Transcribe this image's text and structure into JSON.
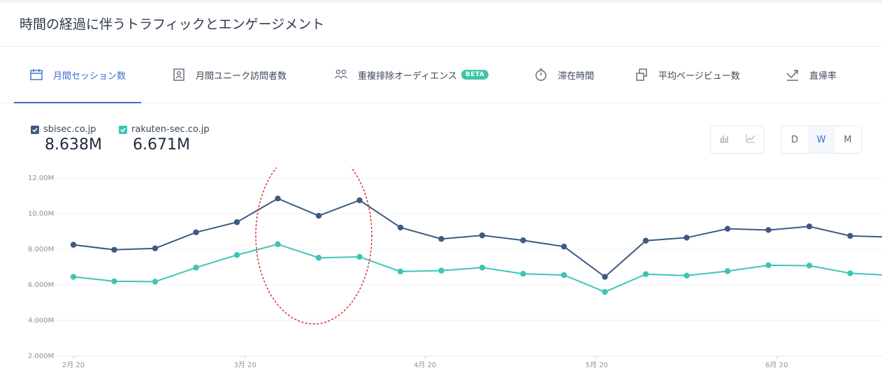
{
  "page_title": "時間の経過に伴うトラフィックとエンゲージメント",
  "tabs": [
    {
      "label": "月間セッション数",
      "icon": "calendar-icon",
      "active": true
    },
    {
      "label": "月間ユニーク訪問者数",
      "icon": "id-card-icon",
      "active": false
    },
    {
      "label": "重複排除オーディエンス",
      "icon": "users-icon",
      "active": false,
      "badge": "BETA"
    },
    {
      "label": "滞在時間",
      "icon": "timer-icon",
      "active": false
    },
    {
      "label": "平均ページビュー数",
      "icon": "pages-icon",
      "active": false
    },
    {
      "label": "直帰率",
      "icon": "bounce-icon",
      "active": false
    }
  ],
  "legend": [
    {
      "label": "sbisec.co.jp",
      "value": "8.638M",
      "color": "#3d5a82"
    },
    {
      "label": "rakuten-sec.co.jp",
      "value": "6.671M",
      "color": "#3ec5b4"
    }
  ],
  "chart_controls": {
    "type_buttons": [
      {
        "icon": "bar-chart-icon",
        "active": false
      },
      {
        "icon": "line-chart-icon",
        "active": false
      }
    ],
    "granularity": [
      {
        "label": "D",
        "active": false
      },
      {
        "label": "W",
        "active": true
      },
      {
        "label": "M",
        "active": false
      }
    ]
  },
  "chart_data": {
    "type": "line",
    "y_ticks": [
      "12.00M",
      "10.00M",
      "8.000M",
      "6.000M",
      "4.000M",
      "2.000M"
    ],
    "y_tick_values": [
      12,
      10,
      8,
      6,
      4,
      2
    ],
    "ylim": [
      2,
      12
    ],
    "x_ticks": [
      "2月 20",
      "3月 20",
      "4月 20",
      "5月 20",
      "6月 20"
    ],
    "x_tick_index": [
      0,
      4.2,
      8.6,
      12.8,
      17.2
    ],
    "grid": true,
    "series": [
      {
        "name": "sbisec.co.jp",
        "color": "#3d5a82",
        "values": [
          8.25,
          7.97,
          8.05,
          8.95,
          9.52,
          10.85,
          9.88,
          10.75,
          9.22,
          8.58,
          8.78,
          8.5,
          8.15,
          6.45,
          8.48,
          8.65,
          9.15,
          9.08,
          9.28,
          8.75,
          8.68
        ]
      },
      {
        "name": "rakuten-sec.co.jp",
        "color": "#3ec5b4",
        "values": [
          6.45,
          6.2,
          6.18,
          6.97,
          7.68,
          8.28,
          7.52,
          7.57,
          6.75,
          6.8,
          6.97,
          6.62,
          6.55,
          5.6,
          6.6,
          6.52,
          6.77,
          7.1,
          7.08,
          6.65,
          6.53
        ]
      }
    ]
  },
  "annotation": {
    "shape": "ellipse",
    "color": "#e02020",
    "style": "dashed"
  }
}
